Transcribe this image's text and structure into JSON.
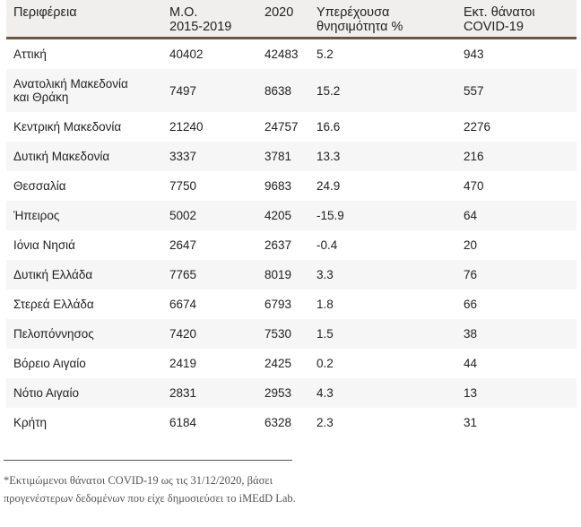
{
  "table": {
    "headers": [
      "Περιφέρεια",
      "Μ.Ο.\n2015-2019",
      "2020",
      "Υπερέχουσα\nθνησιμότητα %",
      "Εκτ. θάνατοι\nCOVID-19"
    ],
    "rows": [
      [
        "Αττική",
        "40402",
        "42483",
        "5.2",
        "943"
      ],
      [
        "Ανατολική Μακεδονία\nκαι Θράκη",
        "7497",
        "8638",
        "15.2",
        "557"
      ],
      [
        "Κεντρική Μακεδονία",
        "21240",
        "24757",
        "16.6",
        "2276"
      ],
      [
        "Δυτική Μακεδονία",
        "3337",
        "3781",
        "13.3",
        "216"
      ],
      [
        "Θεσσαλία",
        "7750",
        "9683",
        "24.9",
        "470"
      ],
      [
        "Ήπειρος",
        "5002",
        "4205",
        "-15.9",
        "64"
      ],
      [
        "Ιόνια Νησιά",
        "2647",
        "2637",
        "-0.4",
        "20"
      ],
      [
        "Δυτική Ελλάδα",
        "7765",
        "8019",
        "3.3",
        "76"
      ],
      [
        "Στερεά Ελλάδα",
        "6674",
        "6793",
        "1.8",
        "66"
      ],
      [
        "Πελοπόννησος",
        "7420",
        "7530",
        "1.5",
        "38"
      ],
      [
        "Βόρειο Αιγαίο",
        "2419",
        "2425",
        "0.2",
        "44"
      ],
      [
        "Νότιο Αιγαίο",
        "2831",
        "2953",
        "4.3",
        "13"
      ],
      [
        "Κρήτη",
        "6184",
        "6328",
        "2.3",
        "31"
      ]
    ]
  },
  "footnote": "*Εκτιμώμενοι θάνατοι COVID-19 ως τις 31/12/2020, βάσει προγενέστερων δεδομένων που είχε δημοσιεύσει το iMEdD Lab.",
  "colors": {
    "header_background": "#f1efed",
    "header_rule": "#6b5646",
    "alt_row": "#f6f6f6"
  }
}
